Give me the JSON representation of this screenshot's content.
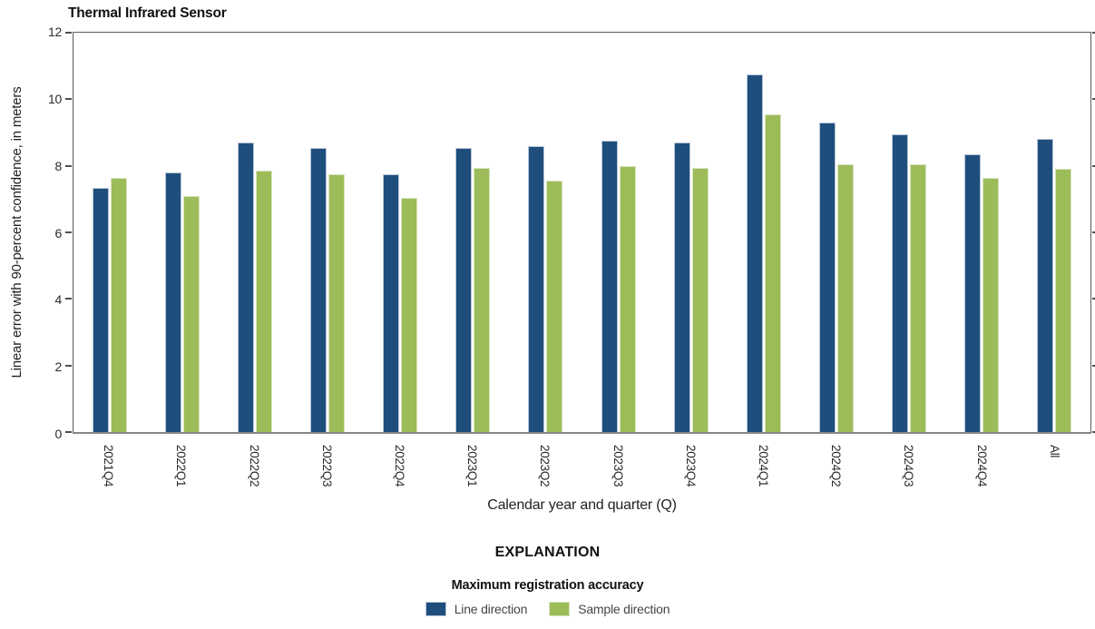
{
  "chart_data": {
    "type": "bar",
    "title": "Thermal Infrared Sensor",
    "xlabel": "Calendar year and quarter (Q)",
    "ylabel": "Linear error with 90-percent confidence, in meters",
    "ylim": [
      0,
      12
    ],
    "yticks": [
      0,
      2,
      4,
      6,
      8,
      10,
      12
    ],
    "grid": false,
    "legend_position": "bottom-explanation-block",
    "categories": [
      "2021Q4",
      "2022Q1",
      "2022Q2",
      "2022Q3",
      "2022Q4",
      "2023Q1",
      "2023Q2",
      "2023Q3",
      "2023Q4",
      "2024Q1",
      "2024Q2",
      "2024Q3",
      "2024Q4",
      "All"
    ],
    "series": [
      {
        "name": "Line direction",
        "color": "#1f4e7d",
        "edge_color": "#b7c7d7",
        "values": [
          7.35,
          7.8,
          8.7,
          8.55,
          7.75,
          8.55,
          8.6,
          8.75,
          8.7,
          10.75,
          9.3,
          8.95,
          8.35,
          8.8
        ]
      },
      {
        "name": "Sample direction",
        "color": "#9cbc59",
        "edge_color": "#d8e3bd",
        "values": [
          7.65,
          7.1,
          7.85,
          7.75,
          7.05,
          7.95,
          7.55,
          8.0,
          7.95,
          9.55,
          8.05,
          8.05,
          7.65,
          7.9
        ]
      }
    ]
  },
  "explanation": {
    "heading": "EXPLANATION",
    "subheading": "Maximum registration accuracy"
  },
  "frame": {
    "spine_color": "#595b5d",
    "bottom_spine_color": "#85878a",
    "tick_color": "#4d4f51",
    "background": "#ffffff"
  }
}
